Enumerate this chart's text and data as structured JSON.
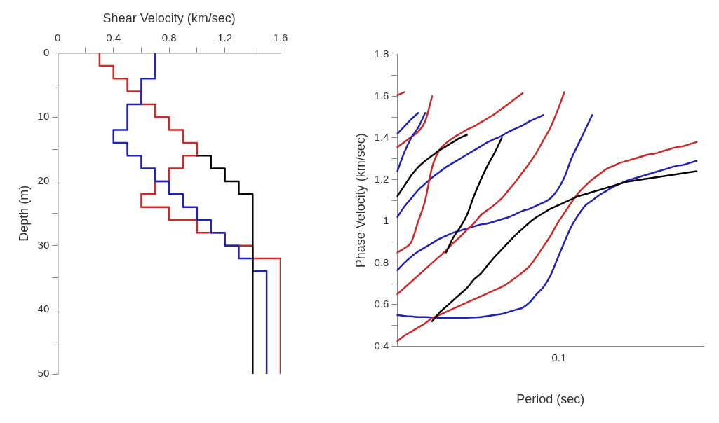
{
  "chart_data": [
    {
      "type": "line",
      "xlabel": "Shear Velocity (km/sec)",
      "ylabel": "Depth (m)",
      "xlim": [
        0,
        1.6
      ],
      "ylim": [
        50,
        0
      ],
      "xticks": [
        0,
        {
          "value": 0.2,
          "label": null
        },
        0.4,
        {
          "value": 0.6,
          "label": null
        },
        0.8,
        {
          "value": 1.0,
          "label": null
        },
        1.2,
        {
          "value": 1.4,
          "label": null
        },
        1.6
      ],
      "yticks": [
        0,
        {
          "value": 5,
          "label": null
        },
        10,
        {
          "value": 15,
          "label": null
        },
        20,
        {
          "value": 25,
          "label": null
        },
        30,
        {
          "value": 35,
          "label": null
        },
        40,
        {
          "value": 45,
          "label": null
        },
        50
      ],
      "grid": false,
      "legend": false,
      "marker": "none",
      "line_style": "solid",
      "series": [
        {
          "color": "#000000",
          "x": [
            1.0,
            1.1,
            1.1,
            1.2,
            1.2,
            1.3,
            1.3,
            1.4,
            1.4
          ],
          "values": [
            16,
            16,
            18,
            18,
            20,
            20,
            22,
            22,
            50
          ]
        },
        {
          "color": "#1f22b4",
          "x": [
            0.7,
            0.7,
            0.6,
            0.6,
            0.5,
            0.5,
            0.4,
            0.4,
            0.5,
            0.5,
            0.6,
            0.6,
            0.7,
            0.7,
            0.8,
            0.8,
            0.9,
            0.9,
            1.0,
            1.0,
            1.1,
            1.1,
            1.2,
            1.2,
            1.3,
            1.3,
            1.4,
            1.4,
            1.5,
            1.5
          ],
          "values": [
            0,
            4,
            4,
            8,
            8,
            12,
            12,
            14,
            14,
            16,
            16,
            18,
            18,
            20,
            20,
            22,
            22,
            24,
            24,
            26,
            26,
            28,
            28,
            30,
            30,
            32,
            32,
            34,
            34,
            50
          ]
        },
        {
          "color": "#cc2929",
          "x": [
            0.3,
            0.3,
            0.4,
            0.4,
            0.5,
            0.5,
            0.6,
            0.6,
            0.7,
            0.7,
            0.8,
            0.8,
            0.9,
            0.9,
            1.0,
            1.0,
            0.9,
            0.9,
            0.8,
            0.8,
            0.7,
            0.7,
            0.6,
            0.6,
            0.8,
            0.8,
            1.0,
            1.0,
            1.2,
            1.2,
            1.4,
            1.4,
            1.6,
            1.6
          ],
          "values": [
            0,
            2,
            2,
            4,
            4,
            6,
            6,
            8,
            8,
            10,
            10,
            12,
            12,
            14,
            14,
            16,
            16,
            18,
            18,
            20,
            20,
            22,
            22,
            24,
            24,
            26,
            26,
            28,
            28,
            30,
            30,
            32,
            32,
            50
          ]
        }
      ]
    },
    {
      "type": "line",
      "xlabel": "Period (sec)",
      "ylabel": "Phase Velocity (km/sec)",
      "ylim": [
        0.4,
        1.8
      ],
      "categories": [
        null,
        null,
        null,
        null,
        null,
        null,
        null,
        null,
        null,
        null,
        null,
        null,
        null,
        null,
        null,
        null,
        null,
        null,
        null,
        null,
        null,
        null,
        null,
        null,
        null,
        null,
        null,
        null,
        null,
        null,
        null,
        null,
        null,
        null,
        null,
        null,
        null,
        null,
        null,
        null,
        null,
        null,
        null,
        null,
        null
      ],
      "annotations": [
        "0.1"
      ],
      "yticks": [
        0.4,
        {
          "value": 0.5,
          "label": null
        },
        0.6,
        {
          "value": 0.7,
          "label": null
        },
        0.8,
        {
          "value": 0.9,
          "label": null
        },
        1,
        {
          "value": 1.1,
          "label": null
        },
        1.2,
        {
          "value": 1.3,
          "label": null
        },
        1.4,
        {
          "value": 1.5,
          "label": null
        },
        1.6,
        {
          "value": 1.7,
          "label": null
        },
        1.8
      ],
      "grid": false,
      "legend": false,
      "marker": "none",
      "line_style": "solid",
      "series": [
        {
          "color": "#cc2929",
          "values": [
            1.605,
            1.62,
            null,
            null,
            null,
            null,
            null,
            null,
            null,
            null,
            null,
            null,
            null,
            null,
            null,
            null,
            null,
            null,
            null,
            null,
            null,
            null,
            null,
            null,
            null,
            null,
            null,
            null,
            null,
            null,
            null,
            null,
            null,
            null,
            null,
            null,
            null,
            null,
            null,
            null,
            null,
            null,
            null,
            null,
            null
          ]
        },
        {
          "color": "#1f22b4",
          "values": [
            1.42,
            1.455,
            1.49,
            1.52,
            null,
            null,
            null,
            null,
            null,
            null,
            null,
            null,
            null,
            null,
            null,
            null,
            null,
            null,
            null,
            null,
            null,
            null,
            null,
            null,
            null,
            null,
            null,
            null,
            null,
            null,
            null,
            null,
            null,
            null,
            null,
            null,
            null,
            null,
            null,
            null,
            null,
            null,
            null,
            null,
            null
          ]
        },
        {
          "color": "#1f22b4",
          "values": [
            1.24,
            1.33,
            1.4,
            1.45,
            1.52,
            null,
            null,
            null,
            null,
            null,
            null,
            null,
            null,
            null,
            null,
            null,
            null,
            null,
            null,
            null,
            null,
            null,
            null,
            null,
            null,
            null,
            null,
            null,
            null,
            null,
            null,
            null,
            null,
            null,
            null,
            null,
            null,
            null,
            null,
            null,
            null,
            null,
            null,
            null,
            null
          ]
        },
        {
          "color": "#cc2929",
          "values": [
            1.355,
            1.38,
            1.405,
            1.43,
            1.48,
            1.6,
            null,
            null,
            null,
            null,
            null,
            null,
            null,
            null,
            null,
            null,
            null,
            null,
            null,
            null,
            null,
            null,
            null,
            null,
            null,
            null,
            null,
            null,
            null,
            null,
            null,
            null,
            null,
            null,
            null,
            null,
            null,
            null,
            null,
            null,
            null,
            null,
            null,
            null,
            null
          ]
        },
        {
          "color": "#000000",
          "values": [
            1.12,
            1.17,
            1.22,
            1.26,
            1.29,
            1.315,
            1.34,
            1.36,
            1.38,
            1.4,
            1.415,
            null,
            null,
            null,
            null,
            null,
            null,
            null,
            null,
            null,
            null,
            null,
            null,
            null,
            null,
            null,
            null,
            null,
            null,
            null,
            null,
            null,
            null,
            null,
            null,
            null,
            null,
            null,
            null,
            null,
            null,
            null,
            null,
            null,
            null
          ]
        },
        {
          "color": "#cc2929",
          "values": [
            0.85,
            0.87,
            0.9,
            1.0,
            1.1,
            1.26,
            1.34,
            1.375,
            1.4,
            1.42,
            1.44,
            1.455,
            1.475,
            1.495,
            1.515,
            1.54,
            1.565,
            1.59,
            1.615,
            null,
            null,
            null,
            null,
            null,
            null,
            null,
            null,
            null,
            null,
            null,
            null,
            null,
            null,
            null,
            null,
            null,
            null,
            null,
            null,
            null,
            null,
            null,
            null,
            null,
            null
          ]
        },
        {
          "color": "#1f22b4",
          "values": [
            1.02,
            1.07,
            1.11,
            1.15,
            1.18,
            1.21,
            1.235,
            1.26,
            1.28,
            1.3,
            1.32,
            1.34,
            1.36,
            1.38,
            1.395,
            1.41,
            1.43,
            1.445,
            1.46,
            1.48,
            1.495,
            1.51,
            null,
            null,
            null,
            null,
            null,
            null,
            null,
            null,
            null,
            null,
            null,
            null,
            null,
            null,
            null,
            null,
            null,
            null,
            null,
            null,
            null,
            null,
            null
          ]
        },
        {
          "color": "#000000",
          "values": [
            null,
            null,
            null,
            null,
            null,
            null,
            null,
            0.85,
            0.92,
            0.97,
            1.03,
            1.12,
            1.2,
            1.27,
            1.33,
            1.4,
            null,
            null,
            null,
            null,
            null,
            null,
            null,
            null,
            null,
            null,
            null,
            null,
            null,
            null,
            null,
            null,
            null,
            null,
            null,
            null,
            null,
            null,
            null,
            null,
            null,
            null,
            null,
            null,
            null
          ]
        },
        {
          "color": "#cc2929",
          "values": [
            0.65,
            0.68,
            0.71,
            0.74,
            0.77,
            0.8,
            0.83,
            0.86,
            0.895,
            0.925,
            0.96,
            0.99,
            1.03,
            1.055,
            1.08,
            1.11,
            1.15,
            1.19,
            1.235,
            1.28,
            1.33,
            1.39,
            1.45,
            1.53,
            1.62,
            null,
            null,
            null,
            null,
            null,
            null,
            null,
            null,
            null,
            null,
            null,
            null,
            null,
            null,
            null,
            null,
            null,
            null,
            null,
            null
          ]
        },
        {
          "color": "#1f22b4",
          "values": [
            0.765,
            0.8,
            0.83,
            0.855,
            0.875,
            0.895,
            0.915,
            0.93,
            0.945,
            0.955,
            0.965,
            0.975,
            0.985,
            0.99,
            1.0,
            1.01,
            1.02,
            1.035,
            1.05,
            1.06,
            1.075,
            1.09,
            1.11,
            1.15,
            1.21,
            1.3,
            1.37,
            1.44,
            1.51,
            null,
            null,
            null,
            null,
            null,
            null,
            null,
            null,
            null,
            null,
            null,
            null,
            null,
            null,
            null,
            null
          ]
        },
        {
          "color": "#000000",
          "values": [
            null,
            null,
            null,
            null,
            null,
            0.52,
            0.56,
            0.59,
            0.62,
            0.65,
            0.68,
            0.72,
            0.75,
            0.79,
            0.83,
            0.865,
            0.9,
            0.935,
            0.965,
            0.995,
            1.02,
            1.04,
            1.06,
            1.075,
            1.09,
            1.105,
            1.12,
            1.13,
            1.14,
            1.15,
            1.16,
            1.17,
            1.18,
            1.19,
            1.195,
            1.2,
            1.205,
            1.21,
            1.215,
            1.22,
            1.225,
            1.23,
            1.235,
            1.24,
            null
          ]
        },
        {
          "color": "#cc2929",
          "values": [
            0.425,
            0.45,
            0.47,
            0.49,
            0.51,
            0.535,
            0.55,
            0.565,
            0.58,
            0.595,
            0.61,
            0.625,
            0.64,
            0.655,
            0.67,
            0.685,
            0.705,
            0.73,
            0.755,
            0.785,
            0.83,
            0.88,
            0.93,
            0.99,
            1.04,
            1.09,
            1.135,
            1.17,
            1.2,
            1.225,
            1.25,
            1.265,
            1.28,
            1.29,
            1.3,
            1.31,
            1.32,
            1.325,
            1.335,
            1.345,
            1.355,
            1.36,
            1.37,
            1.38,
            null
          ]
        },
        {
          "color": "#1f22b4",
          "values": [
            0.55,
            0.545,
            0.543,
            0.54,
            0.54,
            0.538,
            0.537,
            0.537,
            0.537,
            0.537,
            0.537,
            0.538,
            0.54,
            0.545,
            0.55,
            0.555,
            0.565,
            0.575,
            0.585,
            0.61,
            0.65,
            0.685,
            0.74,
            0.82,
            0.9,
            0.975,
            1.03,
            1.075,
            1.1,
            1.125,
            1.145,
            1.165,
            1.18,
            1.195,
            1.205,
            1.215,
            1.225,
            1.235,
            1.245,
            1.255,
            1.265,
            1.27,
            1.28,
            1.29,
            null
          ]
        }
      ]
    }
  ]
}
